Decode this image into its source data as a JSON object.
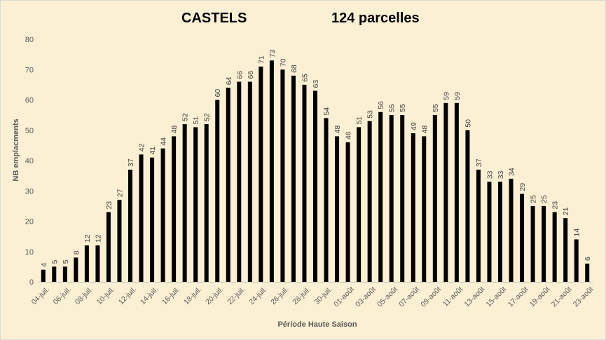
{
  "chart_data": {
    "type": "bar",
    "title": "CASTELS",
    "subtitle": "124 parcelles",
    "xlabel": "Période Haute Saison",
    "ylabel": "NB emplacments",
    "ylim": [
      0,
      80
    ],
    "yticks": [
      0,
      10,
      20,
      30,
      40,
      50,
      60,
      70,
      80
    ],
    "grid": false,
    "legend": "none",
    "bar_color": "#000000",
    "background": "#fcf0d4",
    "categories": [
      "04-juil.",
      "05-juil.",
      "06-juil.",
      "07-juil.",
      "08-juil.",
      "09-juil.",
      "10-juil.",
      "11-juil.",
      "12-juil.",
      "13-juil.",
      "14-juil.",
      "15-juil.",
      "16-juil.",
      "17-juil.",
      "18-juil.",
      "19-juil.",
      "20-juil.",
      "21-juil.",
      "22-juil.",
      "23-juil.",
      "24-juil.",
      "25-juil.",
      "26-juil.",
      "27-juil.",
      "28-juil.",
      "29-juil.",
      "30-juil.",
      "31-juil.",
      "01-août",
      "02-août",
      "03-août",
      "04-août",
      "05-août",
      "06-août",
      "07-août",
      "08-août",
      "09-août",
      "10-août",
      "11-août",
      "12-août",
      "13-août",
      "14-août",
      "15-août",
      "16-août",
      "17-août",
      "18-août",
      "19-août",
      "20-août",
      "21-août",
      "22-août",
      "23-août"
    ],
    "tick_labels_shown": [
      "04-juil.",
      "06-juil.",
      "08-juil.",
      "10-juil.",
      "12-juil.",
      "14-juil.",
      "16-juil.",
      "18-juil.",
      "20-juil.",
      "22-juil.",
      "24-juil.",
      "26-juil.",
      "28-juil.",
      "30-juil.",
      "01-août",
      "03-août",
      "05-août",
      "07-août",
      "09-août",
      "11-août",
      "13-août",
      "15-août",
      "17-août",
      "19-août",
      "21-août",
      "23-août"
    ],
    "values": [
      4,
      5,
      5,
      8,
      12,
      12,
      23,
      27,
      37,
      42,
      41,
      44,
      48,
      52,
      51,
      52,
      60,
      64,
      66,
      66,
      71,
      73,
      70,
      68,
      65,
      63,
      54,
      48,
      46,
      51,
      53,
      56,
      55,
      55,
      49,
      48,
      55,
      59,
      59,
      50,
      37,
      33,
      33,
      34,
      29,
      25,
      25,
      23,
      21,
      14,
      6
    ]
  }
}
